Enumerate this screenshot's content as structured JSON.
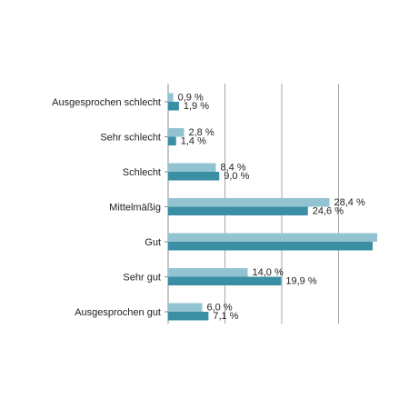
{
  "chart_data": {
    "type": "bar",
    "orientation": "horizontal",
    "categories": [
      "Ausgesprochen schlecht",
      "Sehr schlecht",
      "Schlecht",
      "Mittelmäßig",
      "Gut",
      "Sehr gut",
      "Ausgesprochen gut"
    ],
    "series": [
      {
        "values": [
          0.9,
          2.8,
          8.4,
          28.4,
          36.8,
          14.0,
          6.0
        ],
        "labels": [
          "0,9 %",
          "2,8 %",
          "8,4 %",
          "28,4 %",
          "",
          "14,0 %",
          "6,0 %"
        ],
        "color": "#92c3d1"
      },
      {
        "values": [
          1.9,
          1.4,
          9.0,
          24.6,
          36.0,
          19.9,
          7.1
        ],
        "labels": [
          "1,9 %",
          "1,4  %",
          "9,0  %",
          "24,6  %",
          "",
          "19,9  %",
          "7,1  %"
        ],
        "color": "#3a8fa4"
      }
    ],
    "xlim": [
      0,
      40
    ],
    "xticks": [
      0,
      10,
      20,
      30
    ],
    "grid": "vertical",
    "legend": "none",
    "title": "",
    "xlabel": "",
    "ylabel": ""
  }
}
